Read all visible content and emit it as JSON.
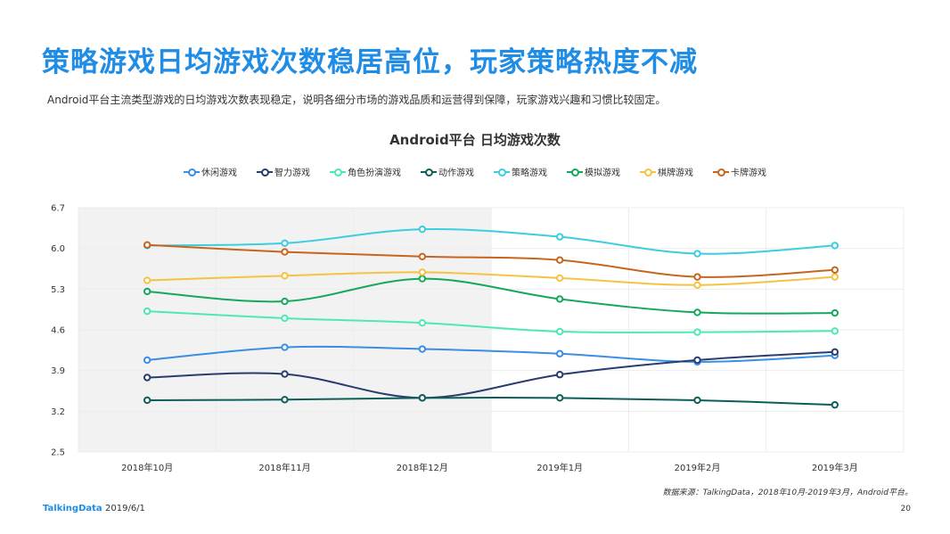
{
  "header": {
    "title": "策略游戏日均游戏次数稳居高位，玩家策略热度不减",
    "subtitle": "Android平台主流类型游戏的日均游戏次数表现稳定，说明各细分市场的游戏品质和运营得到保障，玩家游戏兴趣和习惯比较固定。"
  },
  "chart_data": {
    "type": "line",
    "title": "Android平台  日均游戏次数",
    "categories": [
      "2018年10月",
      "2018年11月",
      "2018年12月",
      "2019年1月",
      "2019年2月",
      "2019年3月"
    ],
    "y_ticks": [
      "2.5",
      "3.2",
      "3.9",
      "4.6",
      "5.3",
      "6.0",
      "6.7"
    ],
    "ylim": [
      2.5,
      6.7
    ],
    "highlight_range": [
      "2018年10月",
      "2018年12月"
    ],
    "legend_position": "top-center",
    "grid": true,
    "series": [
      {
        "name": "休闲游戏",
        "color": "#3a8ee6",
        "values": [
          4.08,
          4.3,
          4.27,
          4.19,
          4.05,
          4.16
        ]
      },
      {
        "name": "智力游戏",
        "color": "#283c6e",
        "values": [
          3.78,
          3.84,
          3.43,
          3.83,
          4.08,
          4.22
        ]
      },
      {
        "name": "角色扮演游戏",
        "color": "#4ee8b8",
        "values": [
          4.92,
          4.8,
          4.72,
          4.57,
          4.56,
          4.58
        ]
      },
      {
        "name": "动作游戏",
        "color": "#0e5e58",
        "values": [
          3.39,
          3.4,
          3.43,
          3.43,
          3.39,
          3.31
        ]
      },
      {
        "name": "策略游戏",
        "color": "#3ccde0",
        "values": [
          6.05,
          6.09,
          6.33,
          6.2,
          5.91,
          6.05
        ]
      },
      {
        "name": "模拟游戏",
        "color": "#14a85a",
        "values": [
          5.26,
          5.09,
          5.48,
          5.13,
          4.9,
          4.89
        ]
      },
      {
        "name": "棋牌游戏",
        "color": "#f5c242",
        "values": [
          5.45,
          5.53,
          5.59,
          5.49,
          5.37,
          5.51
        ]
      },
      {
        "name": "卡牌游戏",
        "color": "#c8641e",
        "values": [
          6.06,
          5.94,
          5.86,
          5.8,
          5.51,
          5.63
        ]
      }
    ]
  },
  "footer": {
    "source": "数据来源：TalkingData，2018年10月-2019年3月，Android平台。",
    "brand": "TalkingData",
    "date": "2019/6/1",
    "page": "20"
  }
}
